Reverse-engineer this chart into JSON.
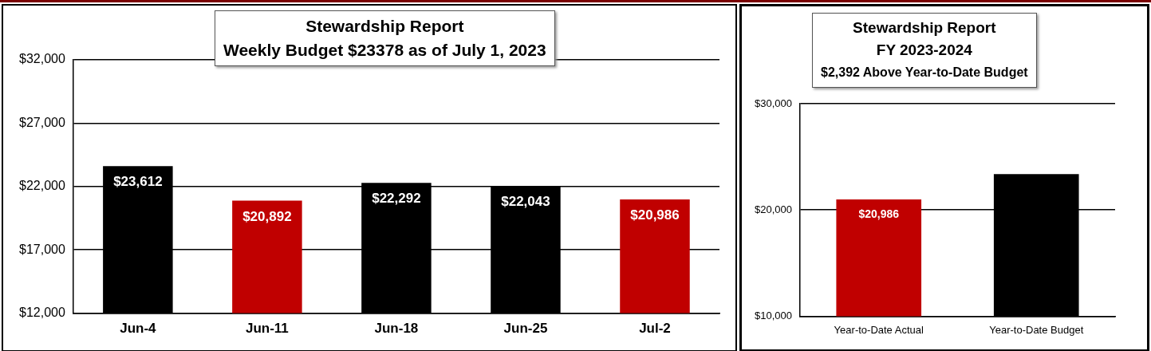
{
  "chart_data": [
    {
      "type": "bar",
      "title": "Stewardship Report",
      "subtitle": "Weekly Budget $23378 as of July 1, 2023",
      "categories": [
        "Jun-4",
        "Jun-11",
        "Jun-18",
        "Jun-25",
        "Jul-2"
      ],
      "values": [
        23612,
        20892,
        22292,
        22043,
        20986
      ],
      "colors": [
        "#000000",
        "#c00000",
        "#000000",
        "#000000",
        "#c00000"
      ],
      "value_labels": [
        "$23,612",
        "$20,892",
        "$22,292",
        "$22,043",
        "$20,986"
      ],
      "ylim": [
        12000,
        32000
      ],
      "yticks": [
        {
          "value": 12000,
          "label": "$12,000"
        },
        {
          "value": 17000,
          "label": "$17,000"
        },
        {
          "value": 22000,
          "label": "$22,000"
        },
        {
          "value": 27000,
          "label": "$27,000"
        },
        {
          "value": 32000,
          "label": "$32,000"
        }
      ],
      "grid": "y",
      "legend": false
    },
    {
      "type": "bar",
      "title": "Stewardship Report",
      "subtitle": "FY 2023-2024",
      "annotations": [
        "$2,392 Above Year-to-Date Budget"
      ],
      "categories": [
        "Year-to-Date Actual",
        "Year-to-Date Budget"
      ],
      "values": [
        20986,
        23378
      ],
      "colors": [
        "#c00000",
        "#000000"
      ],
      "value_labels": [
        "$20,986",
        null
      ],
      "ylim": [
        10000,
        30000
      ],
      "yticks": [
        {
          "value": 10000,
          "label": "$10,000"
        },
        {
          "value": 20000,
          "label": "$20,000"
        },
        {
          "value": 30000,
          "label": "$30,000"
        }
      ],
      "grid": "y",
      "legend": false
    }
  ]
}
